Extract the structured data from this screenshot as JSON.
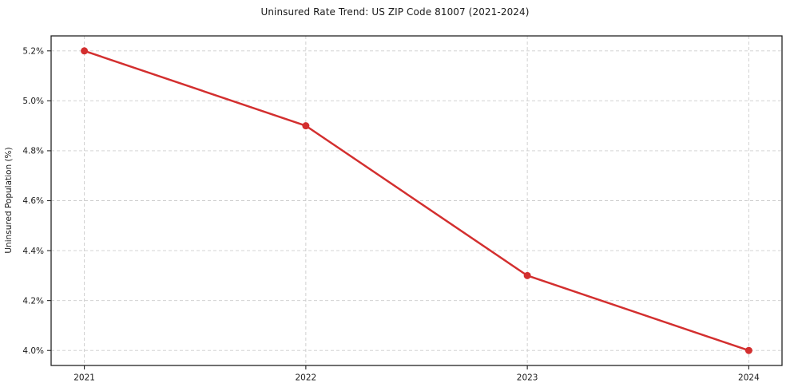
{
  "chart_data": {
    "type": "line",
    "title": "Uninsured Rate Trend: US ZIP Code 81007 (2021-2024)",
    "xlabel": "",
    "ylabel": "Uninsured Population (%)",
    "x": [
      2021,
      2022,
      2023,
      2024
    ],
    "x_tick_labels": [
      "2021",
      "2022",
      "2023",
      "2024"
    ],
    "series": [
      {
        "name": "Uninsured rate",
        "values": [
          5.2,
          4.9,
          4.3,
          4.0
        ]
      }
    ],
    "y_ticks": [
      4.0,
      4.2,
      4.4,
      4.6,
      4.8,
      5.0,
      5.2
    ],
    "y_tick_labels": [
      "4.0%",
      "4.2%",
      "4.4%",
      "4.6%",
      "4.8%",
      "5.0%",
      "5.2%"
    ],
    "ylim": [
      3.94,
      5.26
    ],
    "grid": true,
    "legend": "none",
    "line_color": "#d32f2f",
    "marker_color": "#d32f2f",
    "grid_color": "#cccccc",
    "marker": "circle"
  }
}
